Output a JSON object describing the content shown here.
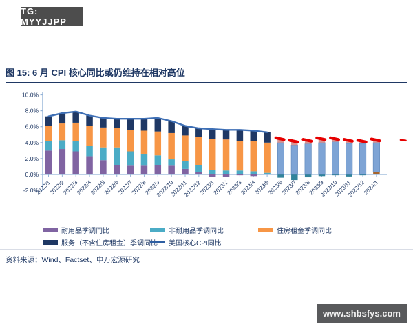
{
  "header": {
    "tg_badge": "TG: MYYJJPP"
  },
  "figure": {
    "title": "图 15: 6 月 CPI 核心同比或仍维持在相对高位",
    "source": "资料来源：Wind、Factset、申万宏源研究"
  },
  "footer": {
    "website": "www.shbsfys.com"
  },
  "colors": {
    "durable": "#8064a2",
    "nondurable": "#4bacc6",
    "rent": "#f79646",
    "services": "#1f3864",
    "line": "#3e6fb5",
    "forecast_main": "#7ea4d5",
    "forecast_main_border": "#5b84b8",
    "forecast_top": "#d99694",
    "forecast_negative": "#31849b",
    "forecast_brown": "#a5642d",
    "forecast_dash_red": "#e60000",
    "axis": "#95b3d7",
    "text": "#1f3864",
    "badge_bg": "#4d4d4d"
  },
  "legend": {
    "items": [
      {
        "label": "耐用品季调同比",
        "type": "box",
        "color": "#8064a2"
      },
      {
        "label": "非耐用品季调同比",
        "type": "box",
        "color": "#4bacc6"
      },
      {
        "label": "住房租金季调同比",
        "type": "box",
        "color": "#f79646"
      },
      {
        "label": "服务（不含住房租金）季调同比",
        "type": "box",
        "color": "#1f3864"
      },
      {
        "label": "美国核心CPI同比",
        "type": "line",
        "color": "#2e5fa3"
      }
    ]
  },
  "chart_data": {
    "type": "bar",
    "subtype": "stacked-bars-with-line-and-forecast",
    "title": "图 15: 6 月 CPI 核心同比或仍维持在相对高位",
    "xlabel": "",
    "ylabel": "",
    "ylim": [
      -2,
      10
    ],
    "yticks": [
      "10.0%",
      "8.0%",
      "6.0%",
      "4.0%",
      "2.0%",
      "0.0%",
      "-2.0%"
    ],
    "ytick_values": [
      10,
      8,
      6,
      4,
      2,
      0,
      -2
    ],
    "grid": false,
    "legend_position": "bottom",
    "categories": [
      "2022/1",
      "2022/2",
      "2022/3",
      "2022/4",
      "2022/5",
      "2022/6",
      "2022/7",
      "2022/8",
      "2022/9",
      "2022/10",
      "2022/11",
      "2022/12",
      "2023/1",
      "2023/2",
      "2023/3",
      "2023/4",
      "2023/5",
      "2023/6",
      "2023/7",
      "2023/8",
      "2023/9",
      "2023/10",
      "2023/11",
      "2023/12",
      "2024/1"
    ],
    "history_months": 17,
    "series": [
      {
        "name": "耐用品季调同比",
        "values": [
          3.0,
          3.2,
          2.9,
          2.3,
          1.8,
          1.2,
          1.1,
          1.1,
          1.2,
          1.1,
          0.7,
          0.3,
          -0.3,
          -0.3,
          -0.1,
          -0.2,
          0,
          0,
          0,
          0,
          0,
          0,
          0,
          0,
          0
        ]
      },
      {
        "name": "非耐用品季调同比",
        "values": [
          1.2,
          1.1,
          1.3,
          1.3,
          1.6,
          2.2,
          1.8,
          1.5,
          1.2,
          0.8,
          1.0,
          0.9,
          0.6,
          0.5,
          0.5,
          0.4,
          0.2,
          0,
          0,
          0,
          0,
          0,
          0,
          0,
          0
        ]
      },
      {
        "name": "住房租金季调同比",
        "values": [
          1.9,
          2.1,
          2.3,
          2.5,
          2.5,
          2.4,
          2.7,
          2.9,
          3.0,
          3.3,
          3.2,
          3.5,
          3.9,
          3.9,
          3.7,
          3.8,
          3.8,
          0,
          0,
          0,
          0,
          0,
          0,
          0,
          0
        ]
      },
      {
        "name": "服务（不含住房租金）季调同比",
        "values": [
          1.2,
          1.3,
          1.4,
          1.3,
          1.2,
          1.2,
          1.4,
          1.5,
          1.7,
          1.5,
          1.2,
          1.1,
          1.2,
          1.2,
          1.4,
          1.3,
          1.3,
          0,
          0,
          0,
          0,
          0,
          0,
          0,
          0
        ]
      }
    ],
    "line_series": {
      "name": "美国核心CPI同比",
      "values": [
        7.3,
        7.7,
        7.9,
        7.4,
        7.1,
        7.0,
        7.0,
        7.0,
        7.1,
        6.7,
        6.1,
        5.8,
        5.7,
        5.6,
        5.6,
        5.5,
        5.3
      ]
    },
    "forecast": {
      "start_index": 17,
      "months": [
        "2023/6",
        "2023/7",
        "2023/8",
        "2023/9",
        "2023/10",
        "2023/11",
        "2023/12",
        "2024/1"
      ],
      "negative_segment": [
        -0.4,
        -0.7,
        -0.35,
        -0.2,
        -0.1,
        -0.25,
        -0.1,
        0
      ],
      "brown_segment": [
        0,
        0,
        0,
        0,
        0,
        0,
        0,
        0.3
      ],
      "main_segment": [
        4.0,
        3.7,
        3.85,
        4.0,
        4.1,
        3.9,
        3.9,
        3.7
      ],
      "top_segment": [
        0.5,
        0.5,
        0.45,
        0.5,
        0.4,
        0.4,
        0.3,
        0.4
      ],
      "core_cpi_dash": [
        4.5,
        4.2,
        4.3,
        4.5,
        4.5,
        4.3,
        4.2,
        4.35
      ],
      "edge_dash_value": 4.35
    }
  }
}
